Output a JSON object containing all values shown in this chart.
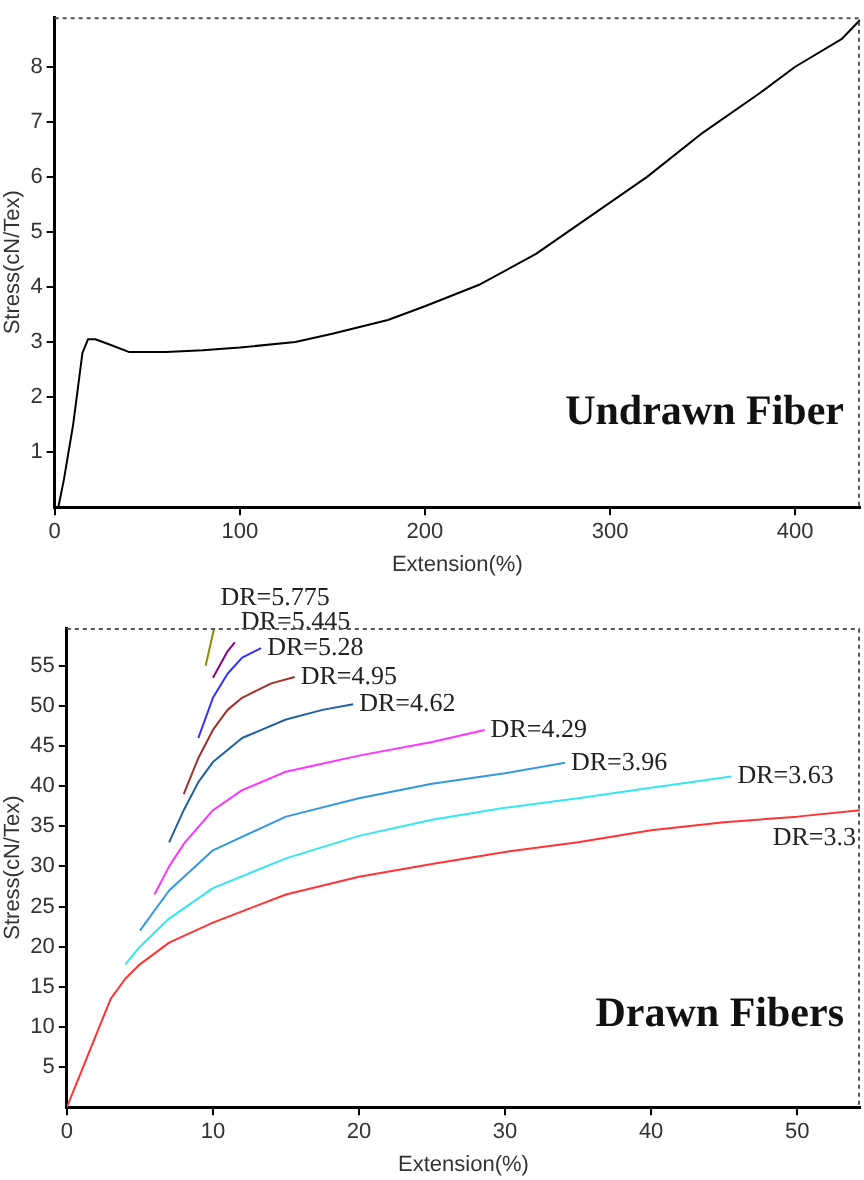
{
  "chart_data": [
    {
      "type": "line",
      "xlabel": "Extension(%)",
      "ylabel": "Stress(cN/Tex)",
      "annotations": [
        "Undrawn Fiber"
      ],
      "xlim": [
        0,
        435
      ],
      "ylim": [
        0,
        8.9
      ],
      "xticks": [
        0,
        100,
        200,
        300,
        400
      ],
      "yticks": [
        1,
        2,
        3,
        4,
        5,
        6,
        7,
        8
      ],
      "series": [
        {
          "color": "#000000",
          "x": [
            2,
            5,
            10,
            15,
            18,
            22,
            30,
            40,
            60,
            80,
            100,
            130,
            150,
            180,
            200,
            230,
            260,
            290,
            320,
            350,
            380,
            400,
            425,
            435
          ],
          "values": [
            0,
            0.5,
            1.5,
            2.8,
            3.05,
            3.05,
            2.95,
            2.82,
            2.82,
            2.85,
            2.9,
            3.0,
            3.15,
            3.4,
            3.65,
            4.05,
            4.6,
            5.3,
            6.0,
            6.8,
            7.5,
            8.0,
            8.5,
            8.85
          ]
        }
      ]
    },
    {
      "type": "line",
      "xlabel": "Extension(%)",
      "ylabel": "Stress(cN/Tex)",
      "annotations": [
        "Drawn Fibers"
      ],
      "xlim": [
        0,
        54.3
      ],
      "ylim": [
        0,
        59.7
      ],
      "xticks": [
        0,
        10,
        20,
        30,
        40,
        50
      ],
      "yticks": [
        5,
        10,
        15,
        20,
        25,
        30,
        35,
        40,
        45,
        50,
        55
      ],
      "series": [
        {
          "name": "DR=3.3",
          "color": "#ff3333",
          "x": [
            0,
            1,
            2,
            3,
            4,
            5,
            7,
            10,
            15,
            20,
            25,
            30,
            35,
            40,
            45,
            50,
            54.3
          ],
          "values": [
            0,
            4.5,
            9,
            13.5,
            16,
            17.8,
            20.5,
            23,
            26.5,
            28.7,
            30.3,
            31.8,
            33,
            34.5,
            35.5,
            36.2,
            37
          ]
        },
        {
          "name": "DR=3.63",
          "color": "#33e6f0",
          "x": [
            4,
            5,
            7,
            10,
            15,
            20,
            25,
            30,
            35,
            40,
            45.5
          ],
          "values": [
            17.8,
            20,
            23.5,
            27.3,
            31,
            33.8,
            35.8,
            37.3,
            38.5,
            39.8,
            41.2
          ]
        },
        {
          "name": "DR=3.96",
          "color": "#3399dd",
          "x": [
            5,
            7,
            10,
            15,
            20,
            25,
            30,
            34.1
          ],
          "values": [
            22,
            27,
            32,
            36.2,
            38.5,
            40.3,
            41.6,
            42.9
          ]
        },
        {
          "name": "DR=4.29",
          "color": "#ff33ff",
          "x": [
            6,
            7,
            8,
            10,
            12,
            15,
            20,
            25,
            28.6
          ],
          "values": [
            26.5,
            30,
            32.8,
            37,
            39.5,
            41.8,
            43.8,
            45.5,
            47
          ]
        },
        {
          "name": "DR=4.62",
          "color": "#2060a0",
          "x": [
            7,
            8,
            9,
            10,
            12,
            15,
            17.5,
            19.6
          ],
          "values": [
            33,
            37,
            40.5,
            43,
            46,
            48.3,
            49.5,
            50.2
          ]
        },
        {
          "name": "DR=4.95",
          "color": "#a0302a",
          "x": [
            8,
            9,
            10,
            11,
            12,
            14,
            15.6
          ],
          "values": [
            39,
            43.5,
            47,
            49.5,
            51,
            52.8,
            53.6
          ]
        },
        {
          "name": "DR=5.28",
          "color": "#3333ff",
          "x": [
            9,
            10,
            11,
            12,
            13.3
          ],
          "values": [
            46,
            51,
            54,
            56,
            57.2
          ]
        },
        {
          "name": "DR=5.445",
          "color": "#8b008b",
          "x": [
            10,
            11,
            11.5
          ],
          "values": [
            53.5,
            56.8,
            57.9
          ]
        },
        {
          "name": "DR=5.775",
          "color": "#8b8b00",
          "x": [
            9.5,
            10,
            10.1
          ],
          "values": [
            55,
            59,
            59.7
          ]
        }
      ]
    }
  ]
}
